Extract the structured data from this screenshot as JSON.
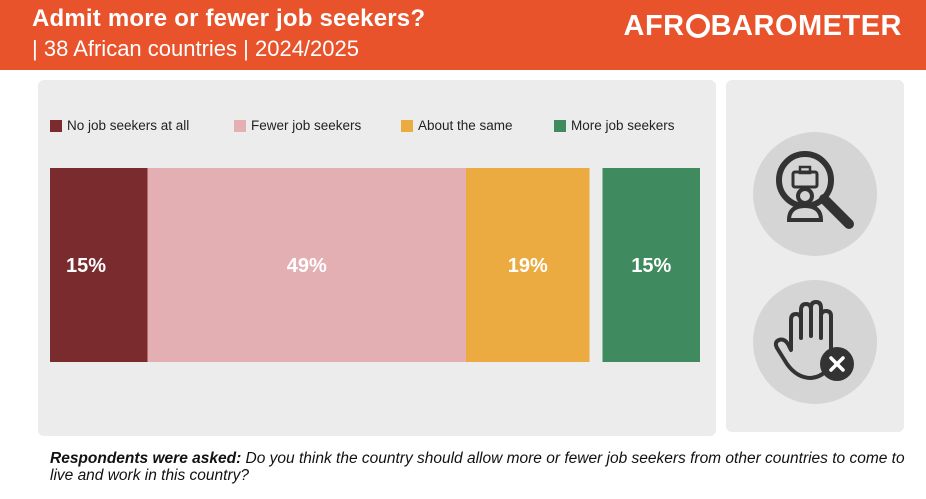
{
  "header": {
    "title": "Admit more or fewer job seekers?",
    "subtitle": "| 38 African countries | 2024/2025",
    "logo_part1": "AFR",
    "logo_part2": "BAROMETER"
  },
  "colors": {
    "header_bg": "#E8532B",
    "no_job_seekers": "#7A2B2E",
    "fewer": "#E4AFB3",
    "same": "#EBAB40",
    "more": "#3F8A5E"
  },
  "icons": [
    "job-search-icon",
    "stop-hand-icon"
  ],
  "chart_data": {
    "type": "bar",
    "orientation": "horizontal-stacked",
    "series": [
      {
        "name": "No job seekers at all",
        "value": 15,
        "label": "15%",
        "color": "#7A2B2E",
        "group": "main"
      },
      {
        "name": "Fewer job seekers",
        "value": 49,
        "label": "49%",
        "color": "#E4AFB3",
        "group": "main"
      },
      {
        "name": "About the same",
        "value": 19,
        "label": "19%",
        "color": "#EBAB40",
        "group": "main"
      },
      {
        "name": "More job seekers",
        "value": 15,
        "label": "15%",
        "color": "#3F8A5E",
        "group": "separate"
      }
    ],
    "legend_position": "top",
    "grid": false
  },
  "footnote": {
    "lead": "Respondents were asked:",
    "text": "Do you think the country should allow more or fewer job seekers from other countries to come to live and work in this country?"
  }
}
